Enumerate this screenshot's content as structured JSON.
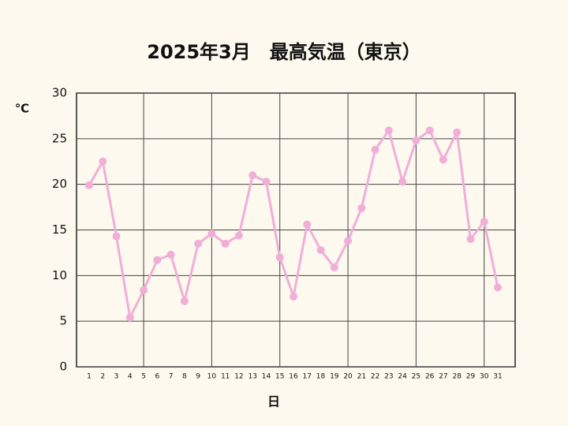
{
  "chart_data": {
    "type": "line",
    "title": "2025年3月　最高気温（東京）",
    "y_unit": "℃",
    "x_label": "日",
    "categories": [
      "1",
      "2",
      "3",
      "4",
      "5",
      "6",
      "7",
      "8",
      "9",
      "10",
      "11",
      "12",
      "13",
      "14",
      "15",
      "16",
      "17",
      "18",
      "19",
      "20",
      "21",
      "22",
      "23",
      "24",
      "25",
      "26",
      "27",
      "28",
      "29",
      "30",
      "31"
    ],
    "series": [
      {
        "name": "最高気温",
        "color": "#f0aed8",
        "values": [
          19.9,
          22.5,
          14.3,
          5.4,
          8.4,
          11.7,
          12.3,
          7.2,
          13.5,
          14.6,
          13.5,
          14.4,
          21.0,
          20.3,
          12.0,
          7.7,
          15.6,
          12.8,
          10.9,
          13.8,
          17.4,
          23.8,
          25.9,
          20.3,
          24.8,
          25.9,
          22.7,
          25.7,
          14.0,
          15.9,
          8.7
        ]
      }
    ],
    "ylim": [
      0,
      30
    ],
    "yticks": [
      0,
      5,
      10,
      15,
      20,
      25,
      30
    ],
    "grid": true
  }
}
